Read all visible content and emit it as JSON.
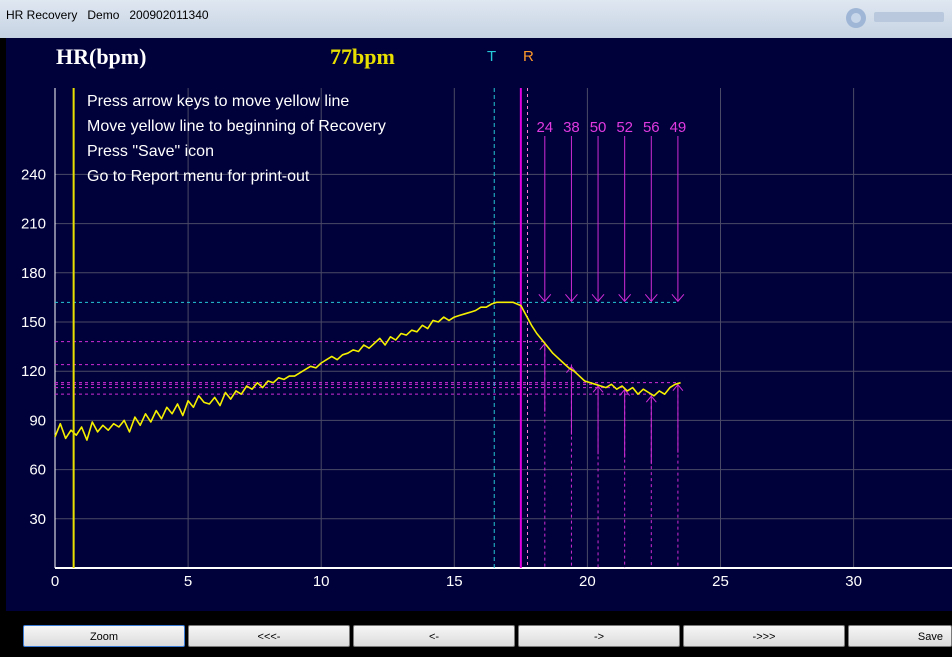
{
  "window": {
    "title": "HR Recovery   Demo   200902011340"
  },
  "header": {
    "y_unit_label": "HR(bpm)",
    "current_bpm": "77bpm",
    "marker_T": "T",
    "marker_R": "R"
  },
  "instructions": [
    "Press arrow keys to move yellow line",
    "Move yellow line to beginning of Recovery",
    "Press \"Save\" icon",
    "Go to Report menu for print-out"
  ],
  "recovery_labels": [
    "24",
    "38",
    "50",
    "52",
    "56",
    "49"
  ],
  "buttons": [
    "Zoom",
    "<<<-",
    "<-",
    "->",
    "->>>",
    "Save"
  ],
  "colors": {
    "background": "#00003a",
    "grid": "#4a4a66",
    "hr_line": "#f5f000",
    "cursor": "#e8e000",
    "T_line": "#25c8d6",
    "R_line": "#e000e0",
    "recovery": "#d02cd6"
  },
  "chart_data": {
    "type": "line",
    "title": "",
    "xlabel": "",
    "ylabel": "HR(bpm)",
    "xlim": [
      0,
      33
    ],
    "ylim": [
      0,
      240
    ],
    "x_ticks": [
      0,
      5,
      10,
      15,
      20,
      25,
      30
    ],
    "y_ticks": [
      30,
      60,
      90,
      120,
      150,
      180,
      210,
      240
    ],
    "grid": true,
    "cursor_x": 0.7,
    "T_x": 16.5,
    "R_x": 17.5,
    "R_secondary_x": 17.75,
    "peak_hr": 162,
    "recovery_points": [
      {
        "label": "24",
        "x": 18.4,
        "hr": 138
      },
      {
        "label": "38",
        "x": 19.4,
        "hr": 124
      },
      {
        "label": "50",
        "x": 20.4,
        "hr": 112
      },
      {
        "label": "52",
        "x": 21.4,
        "hr": 110
      },
      {
        "label": "56",
        "x": 22.4,
        "hr": 106
      },
      {
        "label": "49",
        "x": 23.4,
        "hr": 113
      }
    ],
    "series": [
      {
        "x": [
          0,
          0.2,
          0.4,
          0.6,
          0.8,
          1.0,
          1.2,
          1.4,
          1.6,
          1.8,
          2.0,
          2.2,
          2.4,
          2.6,
          2.8,
          3.0,
          3.2,
          3.4,
          3.6,
          3.8,
          4.0,
          4.2,
          4.4,
          4.6,
          4.8,
          5.0,
          5.2,
          5.4,
          5.6,
          5.8,
          6.0,
          6.2,
          6.4,
          6.6,
          6.8,
          7.0,
          7.2,
          7.4,
          7.6,
          7.8,
          8.0,
          8.2,
          8.4,
          8.6,
          8.8,
          9.0,
          9.2,
          9.4,
          9.6,
          9.8,
          10.0,
          10.2,
          10.4,
          10.6,
          10.8,
          11.0,
          11.2,
          11.4,
          11.6,
          11.8,
          12.0,
          12.2,
          12.4,
          12.6,
          12.8,
          13.0,
          13.2,
          13.4,
          13.6,
          13.8,
          14.0,
          14.2,
          14.4,
          14.6,
          14.8,
          15.0,
          15.2,
          15.4,
          15.6,
          15.8,
          16.0,
          16.2,
          16.4,
          16.6,
          16.8,
          17.0,
          17.2,
          17.5,
          17.7,
          17.9,
          18.1,
          18.3,
          18.5,
          18.7,
          18.9,
          19.1,
          19.3,
          19.5,
          19.7,
          19.9,
          20.1,
          20.3,
          20.5,
          20.7,
          20.9,
          21.1,
          21.3,
          21.5,
          21.7,
          21.9,
          22.1,
          22.3,
          22.5,
          22.7,
          22.9,
          23.1,
          23.3,
          23.5
        ],
        "values": [
          80,
          88,
          79,
          84,
          81,
          86,
          78,
          89,
          83,
          87,
          84,
          88,
          86,
          90,
          83,
          92,
          87,
          94,
          89,
          96,
          91,
          98,
          94,
          100,
          93,
          102,
          98,
          105,
          101,
          100,
          104,
          99,
          107,
          103,
          108,
          106,
          111,
          109,
          113,
          110,
          114,
          113,
          116,
          115,
          117,
          117,
          119,
          121,
          123,
          122,
          125,
          127,
          129,
          127,
          130,
          131,
          133,
          132,
          136,
          134,
          137,
          140,
          136,
          141,
          139,
          143,
          142,
          145,
          144,
          148,
          146,
          151,
          150,
          153,
          151,
          153,
          154,
          155,
          156,
          157,
          159,
          159,
          161,
          162,
          162,
          162,
          162,
          160,
          154,
          148,
          143,
          139,
          135,
          131,
          128,
          125,
          122,
          120,
          117,
          114,
          113,
          112,
          111,
          110,
          112,
          109,
          111,
          108,
          110,
          106,
          109,
          107,
          105,
          108,
          106,
          110,
          112,
          113
        ]
      }
    ]
  }
}
